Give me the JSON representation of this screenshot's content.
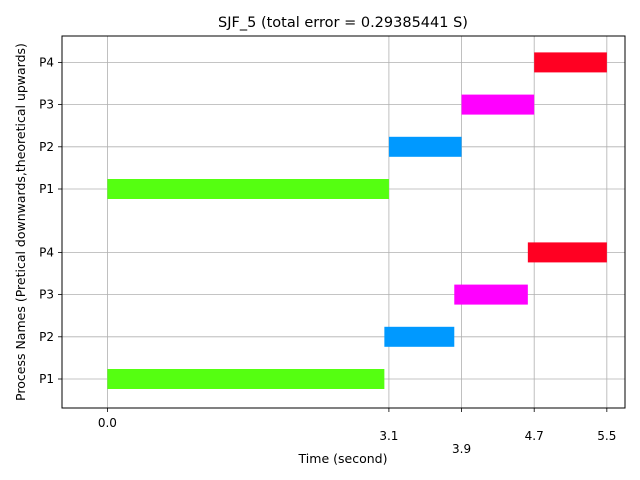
{
  "chart_data": {
    "type": "gantt",
    "title": "SJF_5 (total error = 0.29385441 S)",
    "xlabel": "Time (second)",
    "ylabel": "Process Names (Pretical downwards,theoretical upwards)",
    "xlim": [
      -0.5,
      5.7
    ],
    "xticks": [
      {
        "value": 0.0,
        "label": "0.0",
        "offset": 0
      },
      {
        "value": 3.1,
        "label": "3.1",
        "offset": 1
      },
      {
        "value": 3.9,
        "label": "3.9",
        "offset": 2
      },
      {
        "value": 4.7,
        "label": "4.7",
        "offset": 1
      },
      {
        "value": 5.5,
        "label": "5.5",
        "offset": 1
      }
    ],
    "grid": true,
    "groups": [
      {
        "name": "theoretical",
        "rows": [
          {
            "process": "P1",
            "start": 0.0,
            "end": 3.1,
            "color": "#55ff11"
          },
          {
            "process": "P2",
            "start": 3.1,
            "end": 3.9,
            "color": "#0099ff"
          },
          {
            "process": "P3",
            "start": 3.9,
            "end": 4.7,
            "color": "#ff00ff"
          },
          {
            "process": "P4",
            "start": 4.7,
            "end": 5.5,
            "color": "#ff0022"
          }
        ]
      },
      {
        "name": "practical",
        "rows": [
          {
            "process": "P1",
            "start": 0.0,
            "end": 3.05,
            "color": "#55ff11"
          },
          {
            "process": "P2",
            "start": 3.05,
            "end": 3.82,
            "color": "#0099ff"
          },
          {
            "process": "P3",
            "start": 3.82,
            "end": 4.63,
            "color": "#ff00ff"
          },
          {
            "process": "P4",
            "start": 4.63,
            "end": 5.5,
            "color": "#ff0022"
          }
        ]
      }
    ]
  }
}
